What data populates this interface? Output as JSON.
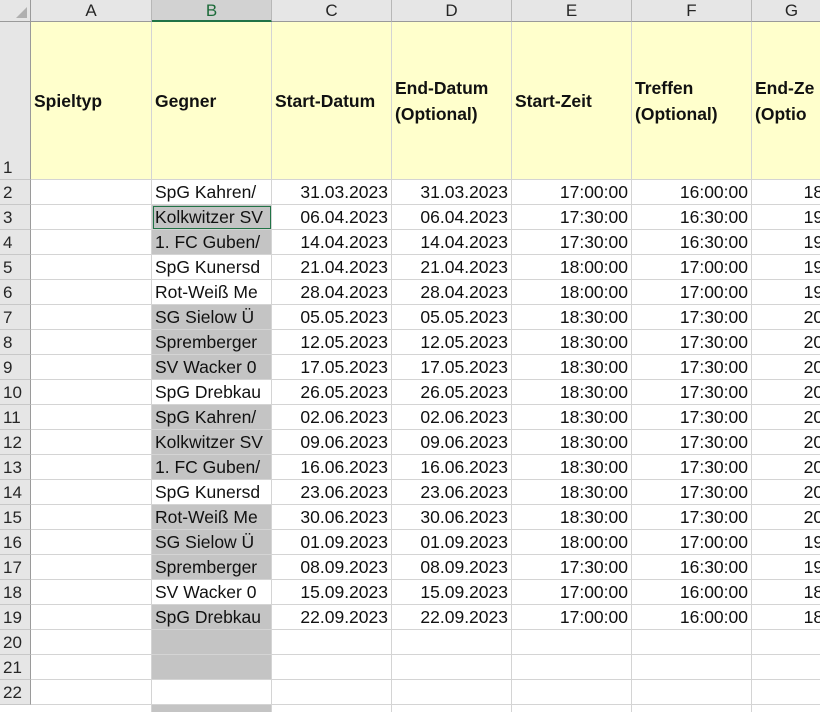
{
  "columns": [
    "A",
    "B",
    "C",
    "D",
    "E",
    "F",
    "G"
  ],
  "row_numbers": [
    "1",
    "2",
    "3",
    "4",
    "5",
    "6",
    "7",
    "8",
    "9",
    "10",
    "11",
    "12",
    "13",
    "14",
    "15",
    "16",
    "17",
    "18",
    "19",
    "20",
    "21",
    "22"
  ],
  "headers": {
    "spieltyp": "Spieltyp",
    "gegner": "Gegner",
    "start_datum": "Start-Datum",
    "end_datum_l1": "End-Datum",
    "end_datum_l2": "(Optional)",
    "start_zeit": "Start-Zeit",
    "treffen_l1": "Treffen",
    "treffen_l2": "(Optional)",
    "end_zeit_l1": "End-Ze",
    "end_zeit_l2": "(Optio"
  },
  "rows": [
    {
      "gegner": "SpG Kahren/",
      "start": "31.03.2023",
      "end": "31.03.2023",
      "zeit": "17:00:00",
      "treffen": "16:00:00",
      "endzeit": "18:"
    },
    {
      "gegner": "Kolkwitzer SV",
      "start": "06.04.2023",
      "end": "06.04.2023",
      "zeit": "17:30:00",
      "treffen": "16:30:00",
      "endzeit": "19:"
    },
    {
      "gegner": "1. FC Guben/",
      "start": "14.04.2023",
      "end": "14.04.2023",
      "zeit": "17:30:00",
      "treffen": "16:30:00",
      "endzeit": "19:"
    },
    {
      "gegner": "SpG Kunersd",
      "start": "21.04.2023",
      "end": "21.04.2023",
      "zeit": "18:00:00",
      "treffen": "17:00:00",
      "endzeit": "19:"
    },
    {
      "gegner": "Rot-Weiß Me",
      "start": "28.04.2023",
      "end": "28.04.2023",
      "zeit": "18:00:00",
      "treffen": "17:00:00",
      "endzeit": "19:"
    },
    {
      "gegner": "SG Sielow Ü",
      "start": "05.05.2023",
      "end": "05.05.2023",
      "zeit": "18:30:00",
      "treffen": "17:30:00",
      "endzeit": "20:"
    },
    {
      "gegner": "Spremberger",
      "start": "12.05.2023",
      "end": "12.05.2023",
      "zeit": "18:30:00",
      "treffen": "17:30:00",
      "endzeit": "20:"
    },
    {
      "gegner": "SV Wacker 0",
      "start": "17.05.2023",
      "end": "17.05.2023",
      "zeit": "18:30:00",
      "treffen": "17:30:00",
      "endzeit": "20:"
    },
    {
      "gegner": "SpG Drebkau",
      "start": "26.05.2023",
      "end": "26.05.2023",
      "zeit": "18:30:00",
      "treffen": "17:30:00",
      "endzeit": "20:"
    },
    {
      "gegner": "SpG Kahren/",
      "start": "02.06.2023",
      "end": "02.06.2023",
      "zeit": "18:30:00",
      "treffen": "17:30:00",
      "endzeit": "20:"
    },
    {
      "gegner": "Kolkwitzer SV",
      "start": "09.06.2023",
      "end": "09.06.2023",
      "zeit": "18:30:00",
      "treffen": "17:30:00",
      "endzeit": "20:"
    },
    {
      "gegner": "1. FC Guben/",
      "start": "16.06.2023",
      "end": "16.06.2023",
      "zeit": "18:30:00",
      "treffen": "17:30:00",
      "endzeit": "20:"
    },
    {
      "gegner": "SpG Kunersd",
      "start": "23.06.2023",
      "end": "23.06.2023",
      "zeit": "18:30:00",
      "treffen": "17:30:00",
      "endzeit": "20:"
    },
    {
      "gegner": "Rot-Weiß Me",
      "start": "30.06.2023",
      "end": "30.06.2023",
      "zeit": "18:30:00",
      "treffen": "17:30:00",
      "endzeit": "20:"
    },
    {
      "gegner": "SG Sielow Ü",
      "start": "01.09.2023",
      "end": "01.09.2023",
      "zeit": "18:00:00",
      "treffen": "17:00:00",
      "endzeit": "19:"
    },
    {
      "gegner": "Spremberger",
      "start": "08.09.2023",
      "end": "08.09.2023",
      "zeit": "17:30:00",
      "treffen": "16:30:00",
      "endzeit": "19:"
    },
    {
      "gegner": "SV Wacker 0",
      "start": "15.09.2023",
      "end": "15.09.2023",
      "zeit": "17:00:00",
      "treffen": "16:00:00",
      "endzeit": "18:"
    },
    {
      "gegner": "SpG Drebkau",
      "start": "22.09.2023",
      "end": "22.09.2023",
      "zeit": "17:00:00",
      "treffen": "16:00:00",
      "endzeit": "18:"
    }
  ],
  "gray_gegner_rows": [
    3,
    4,
    7,
    8,
    9,
    11,
    12,
    13,
    15,
    16,
    17,
    19,
    20,
    21,
    23
  ],
  "active_cell": "B3",
  "colors": {
    "header_fill": "#ffffcc",
    "gray_fill": "#c4c4c4",
    "selection": "#217346"
  }
}
